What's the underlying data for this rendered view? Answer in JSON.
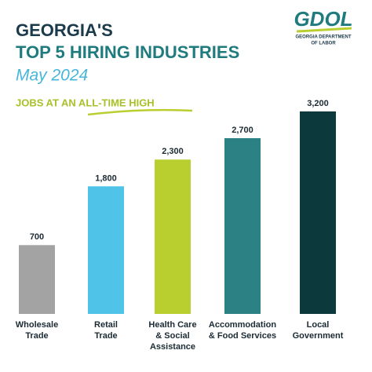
{
  "chart_data": {
    "type": "bar",
    "title": [
      "GEORGIA'S",
      "TOP 5 HIRING INDUSTRIES"
    ],
    "subtitle": "May 2024",
    "annotation": "JOBS AT AN ALL-TIME HIGH",
    "logo": {
      "mark": "GDOL",
      "text": [
        "GEORGIA DEPARTMENT",
        "OF LABOR"
      ]
    },
    "categories": [
      [
        "Wholesale",
        "Trade"
      ],
      [
        "Retail",
        "Trade"
      ],
      [
        "Health Care",
        "& Social",
        "Assistance"
      ],
      [
        "Accommodation",
        "& Food Services"
      ],
      [
        "Local",
        "Government"
      ]
    ],
    "values": [
      700,
      1800,
      2300,
      2700,
      3200
    ],
    "value_labels": [
      "700",
      "1,800",
      "2,300",
      "2,700",
      "3,200"
    ],
    "colors": [
      "#a3a3a3",
      "#4fc4e8",
      "#b9cf2f",
      "#2b8183",
      "#0c3a3c"
    ]
  }
}
